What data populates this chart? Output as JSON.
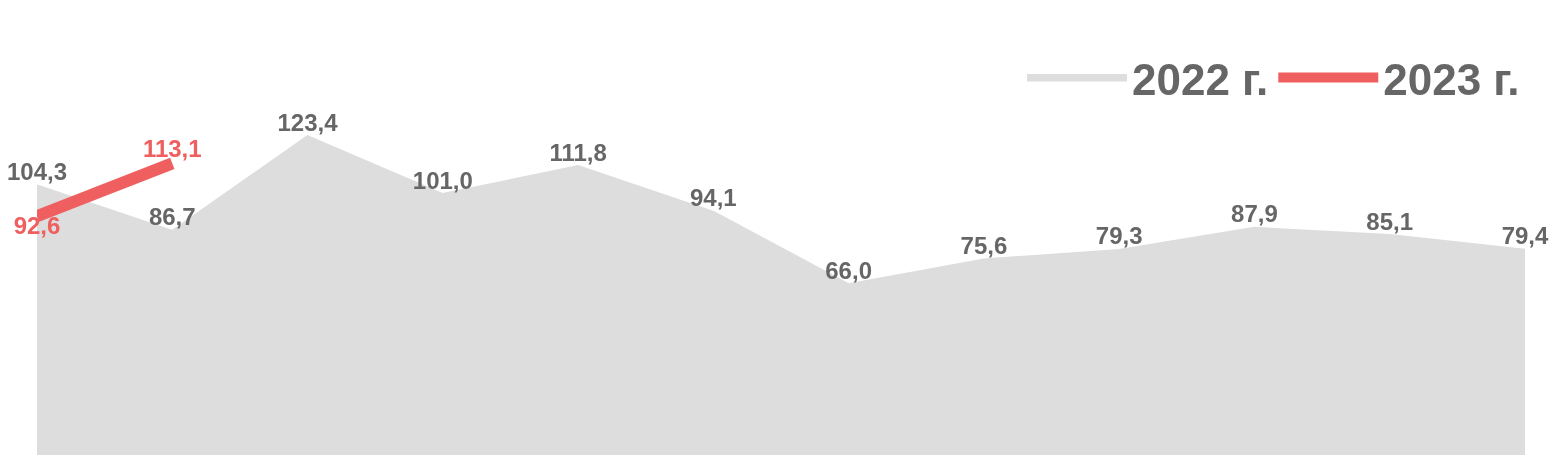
{
  "chart_data": {
    "type": "area",
    "categories": [
      null,
      null,
      null,
      null,
      null,
      null,
      null,
      null,
      null,
      null,
      null,
      null
    ],
    "series": [
      {
        "name": "2022 г.",
        "color": "#dddddd",
        "values": [
          104.3,
          86.7,
          123.4,
          101.0,
          111.8,
          94.1,
          66.0,
          75.6,
          79.3,
          87.9,
          85.1,
          79.4
        ],
        "value_labels": [
          "104,3",
          "86,7",
          "123,4",
          "101,0",
          "111,8",
          "94,1",
          "66,0",
          "75,6",
          "79,3",
          "87,9",
          "85,1",
          "79,4"
        ]
      },
      {
        "name": "2023 г.",
        "type": "line",
        "color": "#ef5f5f",
        "values": [
          92.6,
          113.1,
          null,
          null,
          null,
          null,
          null,
          null,
          null,
          null,
          null,
          null
        ],
        "value_labels": [
          "92,6",
          "113,1",
          null,
          null,
          null,
          null,
          null,
          null,
          null,
          null,
          null,
          null
        ]
      }
    ],
    "legend": "top right",
    "grid": false,
    "tick_labels": false
  }
}
